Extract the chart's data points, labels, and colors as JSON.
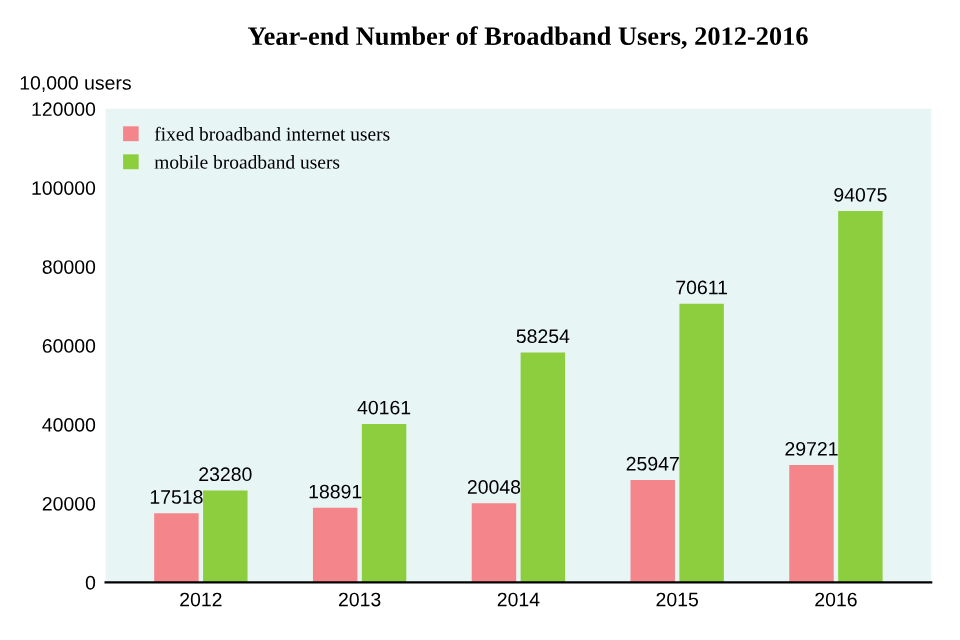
{
  "chart_data": {
    "type": "bar",
    "title": "Year-end Number of Broadband Users, 2012-2016",
    "ylabel": "10,000 users",
    "categories": [
      "2012",
      "2013",
      "2014",
      "2015",
      "2016"
    ],
    "series": [
      {
        "name": "fixed broadband internet users",
        "color": "#f4858a",
        "values": [
          17518,
          18891,
          20048,
          25947,
          29721
        ]
      },
      {
        "name": "mobile broadband users",
        "color": "#8dce3f",
        "values": [
          23280,
          40161,
          58254,
          70611,
          94075
        ]
      }
    ],
    "ylim": [
      0,
      120000
    ],
    "yticks": [
      0,
      20000,
      40000,
      60000,
      80000,
      100000,
      120000
    ],
    "data_labels": true,
    "legend": "top left",
    "grid": false
  }
}
